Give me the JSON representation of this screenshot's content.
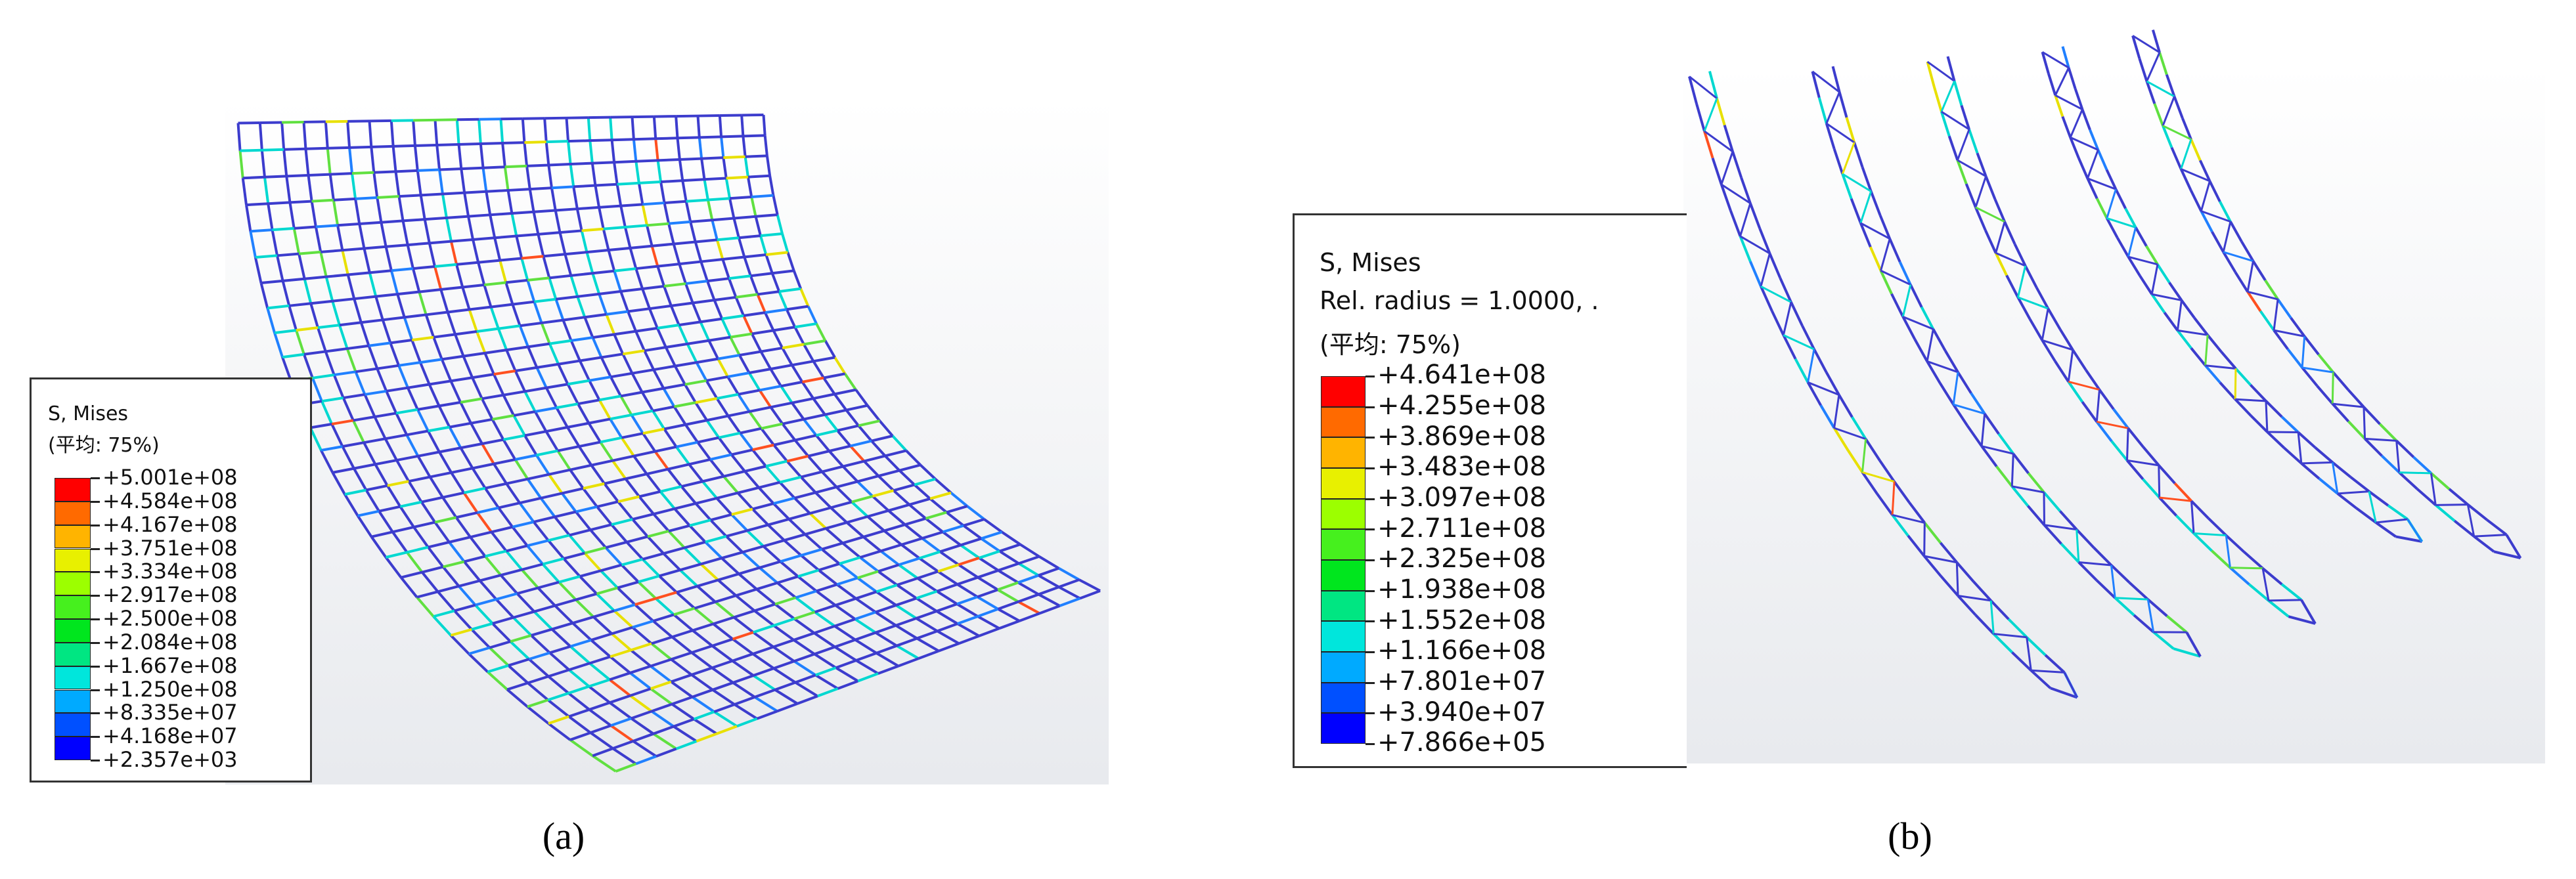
{
  "panels": [
    {
      "legend": {
        "title": "S, Mises",
        "lines": [
          "(平均: 75%)"
        ],
        "labels": [
          "+5.001e+08",
          "+4.584e+08",
          "+4.167e+08",
          "+3.751e+08",
          "+3.334e+08",
          "+2.917e+08",
          "+2.500e+08",
          "+2.084e+08",
          "+1.667e+08",
          "+1.250e+08",
          "+8.335e+07",
          "+4.168e+07",
          "+2.357e+03"
        ]
      },
      "caption": "(a)"
    },
    {
      "legend": {
        "title": "S, Mises",
        "lines": [
          "Rel. radius = 1.0000, .",
          "(平均: 75%)"
        ],
        "labels": [
          "+4.641e+08",
          "+4.255e+08",
          "+3.869e+08",
          "+3.483e+08",
          "+3.097e+08",
          "+2.711e+08",
          "+2.325e+08",
          "+1.938e+08",
          "+1.552e+08",
          "+1.166e+08",
          "+7.801e+07",
          "+3.940e+07",
          "+7.866e+05"
        ]
      },
      "caption": "(b)"
    }
  ]
}
